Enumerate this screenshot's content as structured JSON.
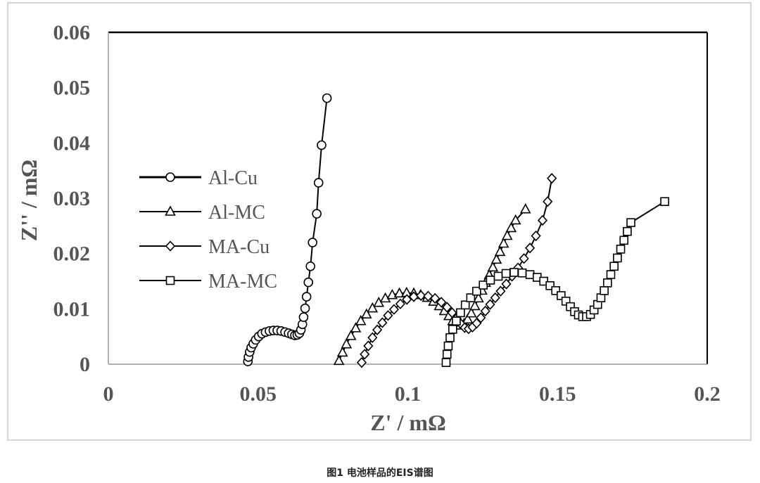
{
  "caption": "图1 电池样品的EIS谱图",
  "chart_data": {
    "type": "scatter",
    "xlabel": "Z' / mΩ",
    "ylabel": "Z'' / mΩ",
    "xlim": [
      0,
      0.2
    ],
    "ylim": [
      0,
      0.06
    ],
    "x_ticks": [
      "0",
      "0.05",
      "0.1",
      "0.15",
      "0.2"
    ],
    "y_ticks": [
      "0",
      "0.01",
      "0.02",
      "0.03",
      "0.04",
      "0.05",
      "0.06"
    ],
    "grid": false,
    "legend_position": "left",
    "series": [
      {
        "name": "Al-Cu",
        "marker": "circle",
        "points": [
          [
            0.0466,
            0.0005
          ],
          [
            0.0468,
            0.0013
          ],
          [
            0.0472,
            0.0022
          ],
          [
            0.0477,
            0.003
          ],
          [
            0.0484,
            0.0037
          ],
          [
            0.0492,
            0.0044
          ],
          [
            0.0502,
            0.005
          ],
          [
            0.0513,
            0.0055
          ],
          [
            0.0525,
            0.0058
          ],
          [
            0.0538,
            0.006
          ],
          [
            0.0551,
            0.0061
          ],
          [
            0.0564,
            0.0061
          ],
          [
            0.0577,
            0.006
          ],
          [
            0.059,
            0.0058
          ],
          [
            0.0602,
            0.0056
          ],
          [
            0.0613,
            0.0054
          ],
          [
            0.0623,
            0.0052
          ],
          [
            0.0631,
            0.0053
          ],
          [
            0.0638,
            0.0056
          ],
          [
            0.0643,
            0.0062
          ],
          [
            0.0648,
            0.0072
          ],
          [
            0.0652,
            0.0085
          ],
          [
            0.0657,
            0.0101
          ],
          [
            0.0662,
            0.0122
          ],
          [
            0.0668,
            0.0148
          ],
          [
            0.0675,
            0.0177
          ],
          [
            0.0682,
            0.022
          ],
          [
            0.0696,
            0.0272
          ],
          [
            0.0702,
            0.0328
          ],
          [
            0.0712,
            0.0396
          ],
          [
            0.073,
            0.0481
          ]
        ]
      },
      {
        "name": "Al-MC",
        "marker": "triangle",
        "points": [
          [
            0.077,
            0.0006
          ],
          [
            0.0782,
            0.0021
          ],
          [
            0.0795,
            0.0036
          ],
          [
            0.081,
            0.0051
          ],
          [
            0.0826,
            0.0065
          ],
          [
            0.0843,
            0.0078
          ],
          [
            0.0862,
            0.009
          ],
          [
            0.0882,
            0.0101
          ],
          [
            0.0903,
            0.0111
          ],
          [
            0.0925,
            0.0119
          ],
          [
            0.0948,
            0.0125
          ],
          [
            0.0972,
            0.0128
          ],
          [
            0.0996,
            0.0129
          ],
          [
            0.102,
            0.0128
          ],
          [
            0.1043,
            0.0125
          ],
          [
            0.1065,
            0.012
          ],
          [
            0.1086,
            0.0113
          ],
          [
            0.1105,
            0.0105
          ],
          [
            0.1122,
            0.0096
          ],
          [
            0.1137,
            0.0087
          ],
          [
            0.115,
            0.0078
          ],
          [
            0.1162,
            0.0072
          ],
          [
            0.1175,
            0.007
          ],
          [
            0.1188,
            0.0073
          ],
          [
            0.12,
            0.0081
          ],
          [
            0.1212,
            0.0092
          ],
          [
            0.1224,
            0.0105
          ],
          [
            0.1236,
            0.0119
          ],
          [
            0.1248,
            0.0133
          ],
          [
            0.126,
            0.0147
          ],
          [
            0.1272,
            0.0161
          ],
          [
            0.1284,
            0.0175
          ],
          [
            0.1296,
            0.0189
          ],
          [
            0.1308,
            0.0203
          ],
          [
            0.132,
            0.0218
          ],
          [
            0.1332,
            0.0232
          ],
          [
            0.1345,
            0.0246
          ],
          [
            0.136,
            0.026
          ],
          [
            0.1393,
            0.028
          ]
        ]
      },
      {
        "name": "MA-Cu",
        "marker": "diamond",
        "points": [
          [
            0.0846,
            0.0003
          ],
          [
            0.0856,
            0.0018
          ],
          [
            0.0868,
            0.0033
          ],
          [
            0.0882,
            0.0048
          ],
          [
            0.0898,
            0.0062
          ],
          [
            0.0915,
            0.0075
          ],
          [
            0.0934,
            0.0088
          ],
          [
            0.0954,
            0.0099
          ],
          [
            0.0975,
            0.0109
          ],
          [
            0.0997,
            0.0117
          ],
          [
            0.102,
            0.0122
          ],
          [
            0.1044,
            0.0124
          ],
          [
            0.1068,
            0.0123
          ],
          [
            0.1091,
            0.0119
          ],
          [
            0.1112,
            0.0112
          ],
          [
            0.1131,
            0.0103
          ],
          [
            0.1148,
            0.0093
          ],
          [
            0.1163,
            0.0083
          ],
          [
            0.1177,
            0.0073
          ],
          [
            0.119,
            0.0066
          ],
          [
            0.1203,
            0.0064
          ],
          [
            0.1216,
            0.0067
          ],
          [
            0.123,
            0.0074
          ],
          [
            0.1244,
            0.0084
          ],
          [
            0.1259,
            0.0096
          ],
          [
            0.1275,
            0.0108
          ],
          [
            0.1292,
            0.012
          ],
          [
            0.131,
            0.0132
          ],
          [
            0.1329,
            0.0145
          ],
          [
            0.1348,
            0.0159
          ],
          [
            0.1368,
            0.0174
          ],
          [
            0.1388,
            0.0191
          ],
          [
            0.1408,
            0.021
          ],
          [
            0.1428,
            0.0232
          ],
          [
            0.145,
            0.026
          ],
          [
            0.1467,
            0.0294
          ],
          [
            0.1481,
            0.0336
          ]
        ]
      },
      {
        "name": "MA-MC",
        "marker": "square",
        "points": [
          [
            0.1128,
            0.0003
          ],
          [
            0.1131,
            0.0018
          ],
          [
            0.1135,
            0.0033
          ],
          [
            0.1141,
            0.0048
          ],
          [
            0.115,
            0.0063
          ],
          [
            0.1162,
            0.0078
          ],
          [
            0.1176,
            0.0093
          ],
          [
            0.1192,
            0.0107
          ],
          [
            0.121,
            0.012
          ],
          [
            0.123,
            0.0132
          ],
          [
            0.1252,
            0.0143
          ],
          [
            0.1276,
            0.0152
          ],
          [
            0.1302,
            0.0159
          ],
          [
            0.1328,
            0.0164
          ],
          [
            0.1355,
            0.0166
          ],
          [
            0.1382,
            0.0165
          ],
          [
            0.1408,
            0.0162
          ],
          [
            0.1432,
            0.0157
          ],
          [
            0.1454,
            0.015
          ],
          [
            0.1475,
            0.0142
          ],
          [
            0.1494,
            0.0133
          ],
          [
            0.1512,
            0.0124
          ],
          [
            0.1528,
            0.0114
          ],
          [
            0.1543,
            0.0104
          ],
          [
            0.1557,
            0.0095
          ],
          [
            0.157,
            0.0089
          ],
          [
            0.1584,
            0.0086
          ],
          [
            0.1597,
            0.0086
          ],
          [
            0.161,
            0.009
          ],
          [
            0.1622,
            0.0098
          ],
          [
            0.1634,
            0.0108
          ],
          [
            0.1645,
            0.012
          ],
          [
            0.1656,
            0.0133
          ],
          [
            0.1667,
            0.0147
          ],
          [
            0.1678,
            0.0162
          ],
          [
            0.1689,
            0.0177
          ],
          [
            0.17,
            0.0192
          ],
          [
            0.1711,
            0.0208
          ],
          [
            0.1722,
            0.0224
          ],
          [
            0.1733,
            0.024
          ],
          [
            0.1745,
            0.0256
          ],
          [
            0.1858,
            0.0294
          ]
        ]
      }
    ]
  }
}
